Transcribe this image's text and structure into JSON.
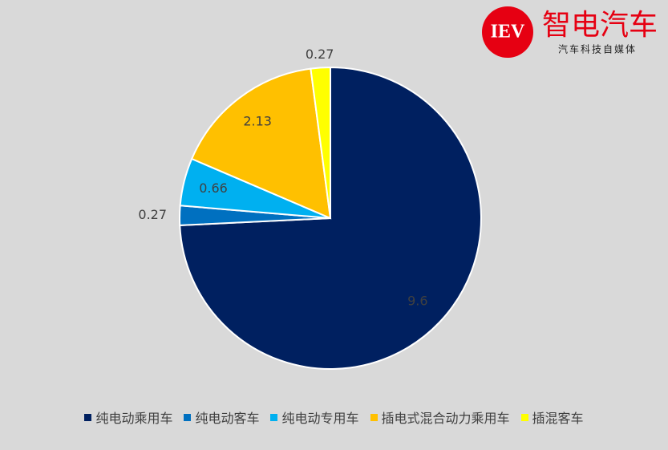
{
  "chart_data": {
    "type": "pie",
    "categories": [
      "纯电动乘用车",
      "纯电动客车",
      "纯电动专用车",
      "插电式混合动力乘用车",
      "插混客车"
    ],
    "values": [
      9.6,
      0.27,
      0.66,
      2.13,
      0.27
    ],
    "colors": [
      "#002060",
      "#0070c0",
      "#00b0f0",
      "#ffc000",
      "#ffff00"
    ],
    "legend": "bottom"
  },
  "logo": {
    "badge": "IEV",
    "name": "智电汽车",
    "tagline": "汽车科技自媒体"
  }
}
